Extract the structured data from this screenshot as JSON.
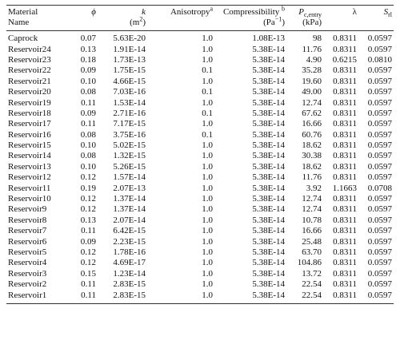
{
  "table": {
    "headers": {
      "material_line1": "Material",
      "material_line2": "Name",
      "phi": "ϕ",
      "k": "k",
      "k_unit_open": "(m",
      "k_unit_exp": "2",
      "k_unit_close": ")",
      "anisotropy": "Anisotropy",
      "anisotropy_note": "a",
      "compressibility": "Compressibility",
      "compressibility_note": "b",
      "compressibility_unit_open": "(Pa",
      "compressibility_unit_exp": "−1",
      "compressibility_unit_close": ")",
      "pc_symbol": "P",
      "pc_sub": "c,entry",
      "pc_unit": "(kPa)",
      "lambda": "λ",
      "srl_symbol": "S",
      "srl_sub": "rl"
    },
    "rows": [
      {
        "name": "Caprock",
        "phi": "0.07",
        "k": "5.63E-20",
        "anisotropy": "1.0",
        "compressibility": "1.08E-13",
        "pc": "98",
        "lambda": "0.8311",
        "srl": "0.0597"
      },
      {
        "name": "Reservoir24",
        "phi": "0.13",
        "k": "1.91E-14",
        "anisotropy": "1.0",
        "compressibility": "5.38E-14",
        "pc": "11.76",
        "lambda": "0.8311",
        "srl": "0.0597"
      },
      {
        "name": "Reservoir23",
        "phi": "0.18",
        "k": "1.73E-13",
        "anisotropy": "1.0",
        "compressibility": "5.38E-14",
        "pc": "4.90",
        "lambda": "0.6215",
        "srl": "0.0810"
      },
      {
        "name": "Reservoir22",
        "phi": "0.09",
        "k": "1.75E-15",
        "anisotropy": "0.1",
        "compressibility": "5.38E-14",
        "pc": "35.28",
        "lambda": "0.8311",
        "srl": "0.0597"
      },
      {
        "name": "Reservoir21",
        "phi": "0.10",
        "k": "4.66E-15",
        "anisotropy": "1.0",
        "compressibility": "5.38E-14",
        "pc": "19.60",
        "lambda": "0.8311",
        "srl": "0.0597"
      },
      {
        "name": "Reservoir20",
        "phi": "0.08",
        "k": "7.03E-16",
        "anisotropy": "0.1",
        "compressibility": "5.38E-14",
        "pc": "49.00",
        "lambda": "0.8311",
        "srl": "0.0597"
      },
      {
        "name": "Reservoir19",
        "phi": "0.11",
        "k": "1.53E-14",
        "anisotropy": "1.0",
        "compressibility": "5.38E-14",
        "pc": "12.74",
        "lambda": "0.8311",
        "srl": "0.0597"
      },
      {
        "name": "Reservoir18",
        "phi": "0.09",
        "k": "2.71E-16",
        "anisotropy": "0.1",
        "compressibility": "5.38E-14",
        "pc": "67.62",
        "lambda": "0.8311",
        "srl": "0.0597"
      },
      {
        "name": "Reservoir17",
        "phi": "0.11",
        "k": "7.17E-15",
        "anisotropy": "1.0",
        "compressibility": "5.38E-14",
        "pc": "16.66",
        "lambda": "0.8311",
        "srl": "0.0597"
      },
      {
        "name": "Reservoir16",
        "phi": "0.08",
        "k": "3.75E-16",
        "anisotropy": "0.1",
        "compressibility": "5.38E-14",
        "pc": "60.76",
        "lambda": "0.8311",
        "srl": "0.0597"
      },
      {
        "name": "Reservoir15",
        "phi": "0.10",
        "k": "5.02E-15",
        "anisotropy": "1.0",
        "compressibility": "5.38E-14",
        "pc": "18.62",
        "lambda": "0.8311",
        "srl": "0.0597"
      },
      {
        "name": "Reservoir14",
        "phi": "0.08",
        "k": "1.32E-15",
        "anisotropy": "1.0",
        "compressibility": "5.38E-14",
        "pc": "30.38",
        "lambda": "0.8311",
        "srl": "0.0597"
      },
      {
        "name": "Reservoir13",
        "phi": "0.10",
        "k": "5.26E-15",
        "anisotropy": "1.0",
        "compressibility": "5.38E-14",
        "pc": "18.62",
        "lambda": "0.8311",
        "srl": "0.0597"
      },
      {
        "name": "Reservoir12",
        "phi": "0.12",
        "k": "1.57E-14",
        "anisotropy": "1.0",
        "compressibility": "5.38E-14",
        "pc": "11.76",
        "lambda": "0.8311",
        "srl": "0.0597"
      },
      {
        "name": "Reservoir11",
        "phi": "0.19",
        "k": "2.07E-13",
        "anisotropy": "1.0",
        "compressibility": "5.38E-14",
        "pc": "3.92",
        "lambda": "1.1663",
        "srl": "0.0708"
      },
      {
        "name": "Reservoir10",
        "phi": "0.12",
        "k": "1.37E-14",
        "anisotropy": "1.0",
        "compressibility": "5.38E-14",
        "pc": "12.74",
        "lambda": "0.8311",
        "srl": "0.0597"
      },
      {
        "name": "Reservoir9",
        "phi": "0.12",
        "k": "1.37E-14",
        "anisotropy": "1.0",
        "compressibility": "5.38E-14",
        "pc": "12.74",
        "lambda": "0.8311",
        "srl": "0.0597"
      },
      {
        "name": "Reservoir8",
        "phi": "0.13",
        "k": "2.07E-14",
        "anisotropy": "1.0",
        "compressibility": "5.38E-14",
        "pc": "10.78",
        "lambda": "0.8311",
        "srl": "0.0597"
      },
      {
        "name": "Reservoir7",
        "phi": "0.11",
        "k": "6.42E-15",
        "anisotropy": "1.0",
        "compressibility": "5.38E-14",
        "pc": "16.66",
        "lambda": "0.8311",
        "srl": "0.0597"
      },
      {
        "name": "Reservoir6",
        "phi": "0.09",
        "k": "2.23E-15",
        "anisotropy": "1.0",
        "compressibility": "5.38E-14",
        "pc": "25.48",
        "lambda": "0.8311",
        "srl": "0.0597"
      },
      {
        "name": "Reservoir5",
        "phi": "0.12",
        "k": "1.78E-16",
        "anisotropy": "1.0",
        "compressibility": "5.38E-14",
        "pc": "63.70",
        "lambda": "0.8311",
        "srl": "0.0597"
      },
      {
        "name": "Reservoir4",
        "phi": "0.12",
        "k": "4.69E-17",
        "anisotropy": "1.0",
        "compressibility": "5.38E-14",
        "pc": "104.86",
        "lambda": "0.8311",
        "srl": "0.0597"
      },
      {
        "name": "Reservoir3",
        "phi": "0.15",
        "k": "1.23E-14",
        "anisotropy": "1.0",
        "compressibility": "5.38E-14",
        "pc": "13.72",
        "lambda": "0.8311",
        "srl": "0.0597"
      },
      {
        "name": "Reservoir2",
        "phi": "0.11",
        "k": "2.83E-15",
        "anisotropy": "1.0",
        "compressibility": "5.38E-14",
        "pc": "22.54",
        "lambda": "0.8311",
        "srl": "0.0597"
      },
      {
        "name": "Reservoir1",
        "phi": "0.11",
        "k": "2.83E-15",
        "anisotropy": "1.0",
        "compressibility": "5.38E-14",
        "pc": "22.54",
        "lambda": "0.8311",
        "srl": "0.0597"
      }
    ]
  }
}
